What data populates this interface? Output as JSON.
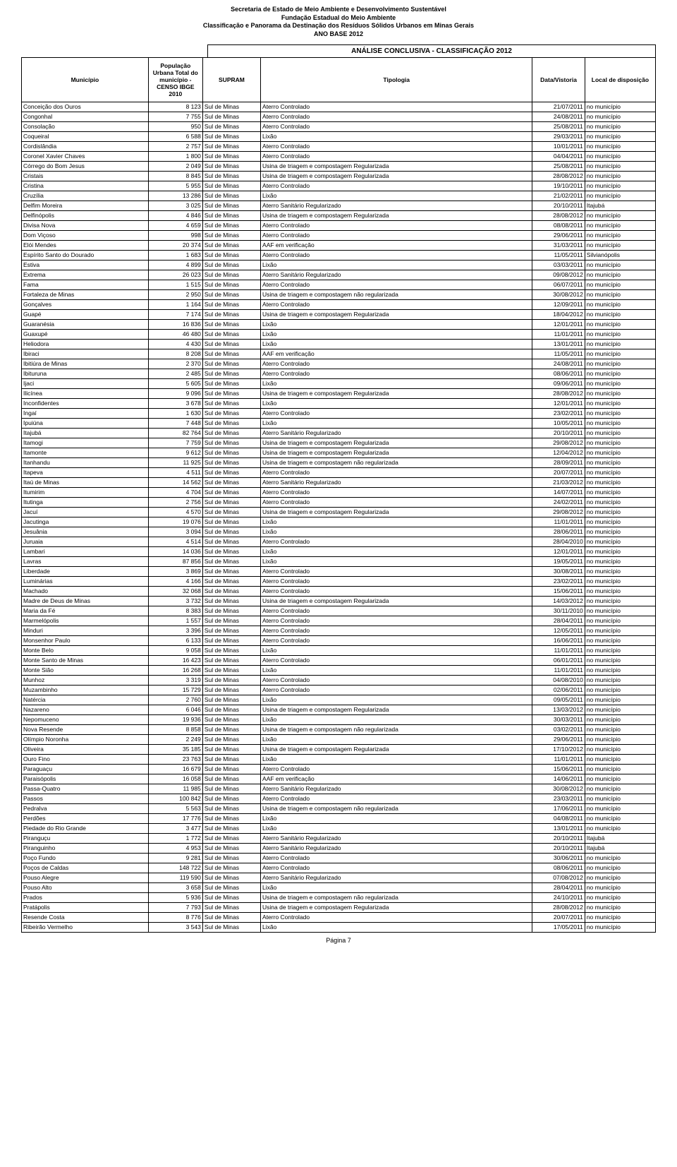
{
  "header": {
    "line1": "Secretaria de Estado de Meio Ambiente e Desenvolvimento Sustentável",
    "line2": "Fundação Estadual do Meio Ambiente",
    "line3": "Classificação e Panorama da Destinação dos Resíduos Sólidos Urbanos em Minas Gerais",
    "line4": "ANO BASE 2012"
  },
  "section_title": "ANÁLISE CONCLUSIVA - CLASSIFICAÇÃO 2012",
  "columns": {
    "municipio": "Município",
    "populacao": "População Urbana Total do município - CENSO IBGE 2010",
    "supram": "SUPRAM",
    "tipologia": "Tipologia",
    "data": "Data/Vistoria",
    "local": "Local de disposição"
  },
  "footer": "Página 7",
  "rows": [
    [
      "Conceição dos Ouros",
      "8 123",
      "Sul  de Minas",
      "Aterro Controlado",
      "21/07/2011",
      "no município"
    ],
    [
      "Congonhal",
      "7 755",
      "Sul  de Minas",
      "Aterro Controlado",
      "24/08/2011",
      "no município"
    ],
    [
      "Consolação",
      "950",
      "Sul  de Minas",
      "Aterro Controlado",
      "25/08/2011",
      "no município"
    ],
    [
      "Coqueiral",
      "6 588",
      "Sul  de Minas",
      "Lixão",
      "29/03/2011",
      "no município"
    ],
    [
      "Cordislândia",
      "2 757",
      "Sul  de Minas",
      "Aterro Controlado",
      "10/01/2011",
      "no município"
    ],
    [
      "Coronel Xavier Chaves",
      "1 800",
      "Sul  de Minas",
      "Aterro Controlado",
      "04/04/2011",
      "no município"
    ],
    [
      "Córrego do Bom Jesus",
      "2 049",
      "Sul  de Minas",
      "Usina de triagem e compostagem Regularizada",
      "25/08/2011",
      "no município"
    ],
    [
      "Cristais",
      "8 845",
      "Sul  de Minas",
      "Usina de triagem e compostagem Regularizada",
      "28/08/2012",
      "no município"
    ],
    [
      "Cristina",
      "5 955",
      "Sul  de Minas",
      "Aterro Controlado",
      "19/10/2011",
      "no município"
    ],
    [
      "Cruzília",
      "13 286",
      "Sul  de Minas",
      "Lixão",
      "21/02/2011",
      "no município"
    ],
    [
      "Delfim Moreira",
      "3 025",
      "Sul  de Minas",
      "Aterro Sanitário Regularizado",
      "20/10/2011",
      "Itajubá"
    ],
    [
      "Delfinópolis",
      "4 846",
      "Sul  de Minas",
      "Usina de triagem e compostagem Regularizada",
      "28/08/2012",
      "no município"
    ],
    [
      "Divisa Nova",
      "4 659",
      "Sul  de Minas",
      "Aterro Controlado",
      "08/08/2011",
      "no município"
    ],
    [
      "Dom Viçoso",
      "998",
      "Sul  de Minas",
      "Aterro Controlado",
      "29/06/2011",
      "no município"
    ],
    [
      "Elói Mendes",
      "20 374",
      "Sul  de Minas",
      "AAF em verificação",
      "31/03/2011",
      "no município"
    ],
    [
      "Espírito Santo do Dourado",
      "1 683",
      "Sul  de Minas",
      "Aterro Controlado",
      "11/05/2011",
      "Silvianópolis"
    ],
    [
      "Estiva",
      "4 899",
      "Sul  de Minas",
      "Lixão",
      "03/03/2011",
      "no município"
    ],
    [
      "Extrema",
      "26 023",
      "Sul  de Minas",
      "Aterro Sanitário Regularizado",
      "09/08/2012",
      "no município"
    ],
    [
      "Fama",
      "1 515",
      "Sul  de Minas",
      "Aterro Controlado",
      "06/07/2011",
      "no município"
    ],
    [
      "Fortaleza de Minas",
      "2 950",
      "Sul  de Minas",
      "Usina de triagem e compostagem não regularizada",
      "30/08/2012",
      "no município"
    ],
    [
      "Gonçalves",
      "1 164",
      "Sul  de Minas",
      "Aterro Controlado",
      "12/09/2011",
      "no município"
    ],
    [
      "Guapé",
      "7 174",
      "Sul  de Minas",
      "Usina de triagem e compostagem Regularizada",
      "18/04/2012",
      "no município"
    ],
    [
      "Guaranésia",
      "16 836",
      "Sul  de Minas",
      "Lixão",
      "12/01/2011",
      "no município"
    ],
    [
      "Guaxupé",
      "46 480",
      "Sul  de Minas",
      "Lixão",
      "11/01/2011",
      "no município"
    ],
    [
      "Heliodora",
      "4 430",
      "Sul  de Minas",
      "Lixão",
      "13/01/2011",
      "no município"
    ],
    [
      "Ibiraci",
      "8 208",
      "Sul  de Minas",
      "AAF em verificação",
      "11/05/2011",
      "no município"
    ],
    [
      "Ibitiúra de Minas",
      "2 370",
      "Sul  de Minas",
      "Aterro Controlado",
      "24/08/2011",
      "no município"
    ],
    [
      "Ibituruna",
      "2 485",
      "Sul  de Minas",
      "Aterro Controlado",
      "08/06/2011",
      "no município"
    ],
    [
      "Ijaci",
      "5 605",
      "Sul  de Minas",
      "Lixão",
      "09/06/2011",
      "no município"
    ],
    [
      "Ilicínea",
      "9 096",
      "Sul  de Minas",
      "Usina de triagem e compostagem Regularizada",
      "28/08/2012",
      "no município"
    ],
    [
      "Inconfidentes",
      "3 678",
      "Sul  de Minas",
      "Lixão",
      "12/01/2011",
      "no município"
    ],
    [
      "Ingaí",
      "1 630",
      "Sul  de Minas",
      "Aterro Controlado",
      "23/02/2011",
      "no município"
    ],
    [
      "Ipuiúna",
      "7 448",
      "Sul  de Minas",
      "Lixão",
      "10/05/2011",
      "no município"
    ],
    [
      "Itajubá",
      "82 764",
      "Sul  de Minas",
      "Aterro Sanitário Regularizado",
      "20/10/2011",
      "no município"
    ],
    [
      "Itamogi",
      "7 759",
      "Sul  de Minas",
      "Usina de triagem e compostagem Regularizada",
      "29/08/2012",
      "no município"
    ],
    [
      "Itamonte",
      "9 612",
      "Sul  de Minas",
      "Usina de triagem e compostagem Regularizada",
      "12/04/2012",
      "no município"
    ],
    [
      "Itanhandu",
      "11 925",
      "Sul  de Minas",
      "Usina de triagem e compostagem não regularizada",
      "28/09/2011",
      "no município"
    ],
    [
      "Itapeva",
      "4 511",
      "Sul  de Minas",
      "Aterro Controlado",
      "20/07/2011",
      "no município"
    ],
    [
      "Itaú de Minas",
      "14 562",
      "Sul  de Minas",
      "Aterro Sanitário Regularizado",
      "21/03/2012",
      "no município"
    ],
    [
      "Itumirim",
      "4 704",
      "Sul  de Minas",
      "Aterro Controlado",
      "14/07/2011",
      "no município"
    ],
    [
      "Itutinga",
      "2 756",
      "Sul  de Minas",
      "Aterro Controlado",
      "24/02/2011",
      "no município"
    ],
    [
      "Jacuí",
      "4 570",
      "Sul  de Minas",
      "Usina de triagem e compostagem Regularizada",
      "29/08/2012",
      "no município"
    ],
    [
      "Jacutinga",
      "19 076",
      "Sul  de Minas",
      "Lixão",
      "11/01/2011",
      "no município"
    ],
    [
      "Jesuânia",
      "3 094",
      "Sul  de Minas",
      "Lixão",
      "28/06/2011",
      "no município"
    ],
    [
      "Juruaia",
      "4 514",
      "Sul  de Minas",
      "Aterro Controlado",
      "28/04/2010",
      "no município"
    ],
    [
      "Lambari",
      "14 036",
      "Sul  de Minas",
      "Lixão",
      "12/01/2011",
      "no município"
    ],
    [
      "Lavras",
      "87 856",
      "Sul  de Minas",
      "Lixão",
      "19/05/2011",
      "no município"
    ],
    [
      "Liberdade",
      "3 869",
      "Sul  de Minas",
      "Aterro Controlado",
      "30/08/2011",
      "no município"
    ],
    [
      "Luminárias",
      "4 166",
      "Sul  de Minas",
      "Aterro Controlado",
      "23/02/2011",
      "no município"
    ],
    [
      "Machado",
      "32 068",
      "Sul  de Minas",
      "Aterro Controlado",
      "15/06/2011",
      "no município"
    ],
    [
      "Madre de Deus de Minas",
      "3 732",
      "Sul  de Minas",
      "Usina de triagem e compostagem Regularizada",
      "14/03/2012",
      "no município"
    ],
    [
      "Maria da Fé",
      "8 383",
      "Sul  de Minas",
      "Aterro Controlado",
      "30/11/2010",
      "no município"
    ],
    [
      "Marmelópolis",
      "1 557",
      "Sul  de Minas",
      "Aterro Controlado",
      "28/04/2011",
      "no município"
    ],
    [
      "Minduri",
      "3 396",
      "Sul  de Minas",
      "Aterro Controlado",
      "12/05/2011",
      "no município"
    ],
    [
      "Monsenhor Paulo",
      "6 133",
      "Sul  de Minas",
      "Aterro Controlado",
      "16/06/2011",
      "no município"
    ],
    [
      "Monte Belo",
      "9 058",
      "Sul  de Minas",
      "Lixão",
      "11/01/2011",
      "no município"
    ],
    [
      "Monte Santo de Minas",
      "16 423",
      "Sul  de Minas",
      "Aterro Controlado",
      "06/01/2011",
      "no município"
    ],
    [
      "Monte Sião",
      "16 268",
      "Sul  de Minas",
      "Lixão",
      "11/01/2011",
      "no município"
    ],
    [
      "Munhoz",
      "3 319",
      "Sul  de Minas",
      "Aterro Controlado",
      "04/08/2010",
      "no município"
    ],
    [
      "Muzambinho",
      "15 729",
      "Sul  de Minas",
      "Aterro Controlado",
      "02/06/2011",
      "no município"
    ],
    [
      "Natércia",
      "2 760",
      "Sul  de Minas",
      "Lixão",
      "09/05/2011",
      "no município"
    ],
    [
      "Nazareno",
      "6 046",
      "Sul  de Minas",
      "Usina de triagem e compostagem Regularizada",
      "13/03/2012",
      "no município"
    ],
    [
      "Nepomuceno",
      "19 936",
      "Sul  de Minas",
      "Lixão",
      "30/03/2011",
      "no município"
    ],
    [
      "Nova Resende",
      "8 858",
      "Sul  de Minas",
      "Usina de triagem e compostagem não regularizada",
      "03/02/2011",
      "no município"
    ],
    [
      "Olímpio Noronha",
      "2 249",
      "Sul  de Minas",
      "Lixão",
      "29/06/2011",
      "no município"
    ],
    [
      "Oliveira",
      "35 185",
      "Sul  de Minas",
      "Usina de triagem e compostagem Regularizada",
      "17/10/2012",
      "no município"
    ],
    [
      "Ouro Fino",
      "23 763",
      "Sul  de Minas",
      "Lixão",
      "11/01/2011",
      "no município"
    ],
    [
      "Paraguaçu",
      "16 679",
      "Sul  de Minas",
      "Aterro Controlado",
      "15/06/2011",
      "no município"
    ],
    [
      "Paraisópolis",
      "16 058",
      "Sul  de Minas",
      "AAF em verificação",
      "14/06/2011",
      "no município"
    ],
    [
      "Passa-Quatro",
      "11 985",
      "Sul  de Minas",
      "Aterro Sanitário Regularizado",
      "30/08/2012",
      "no município"
    ],
    [
      "Passos",
      "100 842",
      "Sul  de Minas",
      "Aterro Controlado",
      "23/03/2011",
      "no município"
    ],
    [
      "Pedralva",
      "5 563",
      "Sul  de Minas",
      "Usina de triagem e compostagem não regularizada",
      "17/06/2011",
      "no município"
    ],
    [
      "Perdões",
      "17 776",
      "Sul  de Minas",
      "Lixão",
      "04/08/2011",
      "no município"
    ],
    [
      "Piedade do Rio Grande",
      "3 477",
      "Sul  de Minas",
      "Lixão",
      "13/01/2011",
      "no município"
    ],
    [
      "Piranguçu",
      "1 772",
      "Sul  de Minas",
      "Aterro Sanitário Regularizado",
      "20/10/2011",
      "Itajubá"
    ],
    [
      "Piranguinho",
      "4 953",
      "Sul  de Minas",
      "Aterro Sanitário Regularizado",
      "20/10/2011",
      "Itajubá"
    ],
    [
      "Poço Fundo",
      "9 281",
      "Sul  de Minas",
      "Aterro Controlado",
      "30/06/2011",
      "no município"
    ],
    [
      "Poços de Caldas",
      "148 722",
      "Sul  de Minas",
      "Aterro Controlado",
      "08/06/2011",
      "no município"
    ],
    [
      "Pouso Alegre",
      "119 590",
      "Sul  de Minas",
      "Aterro Sanitário Regularizado",
      "07/08/2012",
      "no município"
    ],
    [
      "Pouso Alto",
      "3 658",
      "Sul  de Minas",
      "Lixão",
      "28/04/2011",
      "no município"
    ],
    [
      "Prados",
      "5 936",
      "Sul  de Minas",
      "Usina de triagem e compostagem não regularizada",
      "24/10/2011",
      "no município"
    ],
    [
      "Pratápolis",
      "7 793",
      "Sul  de Minas",
      "Usina de triagem e compostagem Regularizada",
      "28/08/2012",
      "no município"
    ],
    [
      "Resende Costa",
      "8 776",
      "Sul  de Minas",
      "Aterro Controlado",
      "20/07/2011",
      "no município"
    ],
    [
      "Ribeirão Vermelho",
      "3 543",
      "Sul  de Minas",
      "Lixão",
      "17/05/2011",
      "no município"
    ]
  ]
}
